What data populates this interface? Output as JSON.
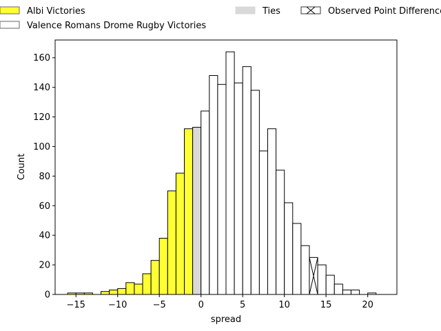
{
  "chart_data": {
    "type": "bar",
    "title": "",
    "xlabel": "spread",
    "ylabel": "Count",
    "xlim": [
      -17.5,
      23.5
    ],
    "ylim": [
      0,
      172
    ],
    "xticks": [
      -15,
      -10,
      -5,
      0,
      5,
      10,
      15,
      20
    ],
    "yticks": [
      0,
      20,
      40,
      60,
      80,
      100,
      120,
      140,
      160
    ],
    "bin_width": 1,
    "grid": false,
    "legend_position": "top (outside plot, above axes)",
    "legend": [
      {
        "label": "Albi Victories",
        "color": "#ffff33",
        "edge": "#666666",
        "hatch": false
      },
      {
        "label": "Valence Romans Drome Rugby Victories",
        "color": "#ffffff",
        "edge": "#666666",
        "hatch": false
      },
      {
        "label": "Ties",
        "color": "#d9d9d9",
        "edge": "#d9d9d9",
        "hatch": false
      },
      {
        "label": "Observed Point Difference",
        "color": "#ffffff",
        "edge": "#333333",
        "hatch": true
      }
    ],
    "series": [
      {
        "name": "Albi Victories",
        "color": "#ffff33",
        "bins": [
          {
            "x": -16,
            "value": 1
          },
          {
            "x": -15,
            "value": 1
          },
          {
            "x": -14,
            "value": 1
          },
          {
            "x": -12,
            "value": 2
          },
          {
            "x": -11,
            "value": 3
          },
          {
            "x": -10,
            "value": 4
          },
          {
            "x": -9,
            "value": 8
          },
          {
            "x": -8,
            "value": 7
          },
          {
            "x": -7,
            "value": 14
          },
          {
            "x": -6,
            "value": 23
          },
          {
            "x": -5,
            "value": 38
          },
          {
            "x": -4,
            "value": 70
          },
          {
            "x": -3,
            "value": 82
          },
          {
            "x": -2,
            "value": 112
          }
        ]
      },
      {
        "name": "Ties",
        "color": "#d9d9d9",
        "bins": [
          {
            "x": -1,
            "value": 113
          }
        ]
      },
      {
        "name": "Valence Romans Drome Rugby Victories",
        "color": "#ffffff",
        "bins": [
          {
            "x": 0,
            "value": 124
          },
          {
            "x": 1,
            "value": 148
          },
          {
            "x": 2,
            "value": 142
          },
          {
            "x": 3,
            "value": 164
          },
          {
            "x": 4,
            "value": 143
          },
          {
            "x": 5,
            "value": 154
          },
          {
            "x": 6,
            "value": 138
          },
          {
            "x": 7,
            "value": 97
          },
          {
            "x": 8,
            "value": 112
          },
          {
            "x": 9,
            "value": 84
          },
          {
            "x": 10,
            "value": 62
          },
          {
            "x": 11,
            "value": 48
          },
          {
            "x": 12,
            "value": 33
          },
          {
            "x": 13,
            "value": 25
          },
          {
            "x": 14,
            "value": 20
          },
          {
            "x": 15,
            "value": 13
          },
          {
            "x": 16,
            "value": 7
          },
          {
            "x": 17,
            "value": 3
          },
          {
            "x": 18,
            "value": 3
          },
          {
            "x": 20,
            "value": 1
          }
        ]
      }
    ],
    "observed_point_difference": {
      "x": 13,
      "value": 25
    }
  }
}
